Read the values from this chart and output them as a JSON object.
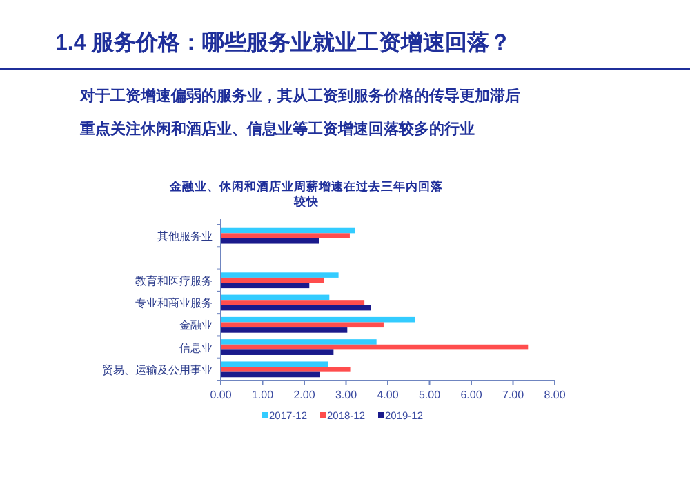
{
  "chart_data": {
    "type": "bar",
    "orientation": "horizontal",
    "title": "1.4 服务价格：哪些服务业就业工资增速回落？",
    "subtitle": "金融业、休闲和酒店业周薪增速在过去三年内回落较快",
    "annotations": [
      "对于工资增速偏弱的服务业，其从工资到服务价格的传导更加滞后",
      "重点关注休闲和酒店业、信息业等工资增速回落较多的行业"
    ],
    "categories": [
      "其他服务业",
      null,
      "教育和医疗服务",
      "专业和商业服务",
      "金融业",
      "信息业",
      "贸易、运输及公用事业"
    ],
    "series": [
      {
        "name": "2017-12",
        "color": "#33ccff",
        "values": [
          3.22,
          null,
          2.82,
          2.6,
          4.65,
          3.73,
          2.57
        ]
      },
      {
        "name": "2018-12",
        "color": "#ff4d4d",
        "values": [
          3.09,
          null,
          2.47,
          3.44,
          3.9,
          7.36,
          3.1
        ]
      },
      {
        "name": "2019-12",
        "color": "#1a1a8c",
        "values": [
          2.36,
          null,
          2.12,
          3.6,
          3.03,
          2.7,
          2.38
        ]
      }
    ],
    "xlim": [
      0,
      8
    ],
    "xticks": [
      {
        "value": 0,
        "label": "0.00"
      },
      {
        "value": 1,
        "label": "1.00"
      },
      {
        "value": 2,
        "label": "2.00"
      },
      {
        "value": 3,
        "label": "3.00"
      },
      {
        "value": 4,
        "label": "4.00"
      },
      {
        "value": 5,
        "label": "5.00"
      },
      {
        "value": 6,
        "label": "6.00"
      },
      {
        "value": 7,
        "label": "7.00"
      },
      {
        "value": 8,
        "label": "8.00"
      }
    ],
    "legend": "bottom"
  }
}
